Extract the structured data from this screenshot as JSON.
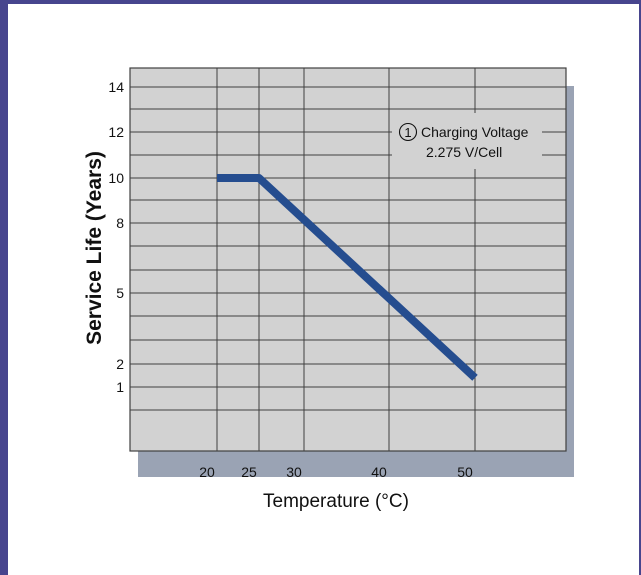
{
  "colors": {
    "frame": "#47458e",
    "plot_background": "#d2d2d2",
    "plot_shadow": "#9aa3b4",
    "grid": "#404040",
    "series": "#254d8f"
  },
  "chart_data": {
    "type": "line",
    "title": "",
    "xlabel": "Temperature (°C)",
    "ylabel": "Service Life (Years)",
    "grid": true,
    "legend_position": "top-right",
    "x_ticks": [
      {
        "value": 20,
        "label": "20"
      },
      {
        "value": 25,
        "label": "25"
      },
      {
        "value": 30,
        "label": "30"
      },
      {
        "value": 40,
        "label": "40"
      },
      {
        "value": 50,
        "label": "50"
      }
    ],
    "y_ticks": [
      {
        "value": 14,
        "label": "14"
      },
      {
        "value": 12,
        "label": "12"
      },
      {
        "value": 10,
        "label": "10"
      },
      {
        "value": 8,
        "label": "8"
      },
      {
        "value": 5,
        "label": "5"
      },
      {
        "value": 2,
        "label": "2"
      },
      {
        "value": 1,
        "label": "1"
      }
    ],
    "series": [
      {
        "name": "Charging Voltage 2.275 V/Cell",
        "points": [
          {
            "x": 20,
            "y": 10
          },
          {
            "x": 25,
            "y": 10
          },
          {
            "x": 50,
            "y": 1.4
          }
        ]
      }
    ],
    "annotation": {
      "marker": "1",
      "line1": "Charging Voltage",
      "line2": "2.275 V/Cell"
    }
  }
}
